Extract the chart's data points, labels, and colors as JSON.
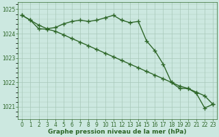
{
  "x": [
    0,
    1,
    2,
    3,
    4,
    5,
    6,
    7,
    8,
    9,
    10,
    11,
    12,
    13,
    14,
    15,
    16,
    17,
    18,
    19,
    20,
    21,
    22,
    23
  ],
  "line1": [
    1024.75,
    1024.55,
    1024.35,
    1024.2,
    1024.25,
    1024.4,
    1024.5,
    1024.55,
    1024.5,
    1024.55,
    1024.65,
    1024.75,
    1024.55,
    1024.45,
    1024.5,
    1023.7,
    1023.3,
    1022.75,
    1022.0,
    1021.75,
    1021.75,
    1021.55,
    1020.95,
    1021.1
  ],
  "line2": [
    1024.75,
    1024.55,
    1024.2,
    1024.18,
    1024.1,
    1023.95,
    1023.8,
    1023.65,
    1023.5,
    1023.35,
    1023.2,
    1023.05,
    1022.9,
    1022.75,
    1022.6,
    1022.45,
    1022.3,
    1022.15,
    1022.0,
    1021.85,
    1021.75,
    1021.6,
    1021.45,
    1021.1
  ],
  "line_color": "#2d6628",
  "bg_color": "#cce8e0",
  "grid_color": "#a8c8b8",
  "xlabel": "Graphe pression niveau de la mer (hPa)",
  "ylim": [
    1020.5,
    1025.3
  ],
  "yticks": [
    1021,
    1022,
    1023,
    1024,
    1025
  ],
  "xtick_labels": [
    "0",
    "1",
    "2",
    "3",
    "4",
    "5",
    "6",
    "7",
    "8",
    "9",
    "10",
    "11",
    "12",
    "13",
    "14",
    "15",
    "16",
    "17",
    "18",
    "19",
    "20",
    "21",
    "22",
    "23"
  ],
  "marker": "+",
  "markersize": 4,
  "linewidth": 1.0,
  "tick_fontsize": 5.5,
  "xlabel_fontsize": 6.5
}
